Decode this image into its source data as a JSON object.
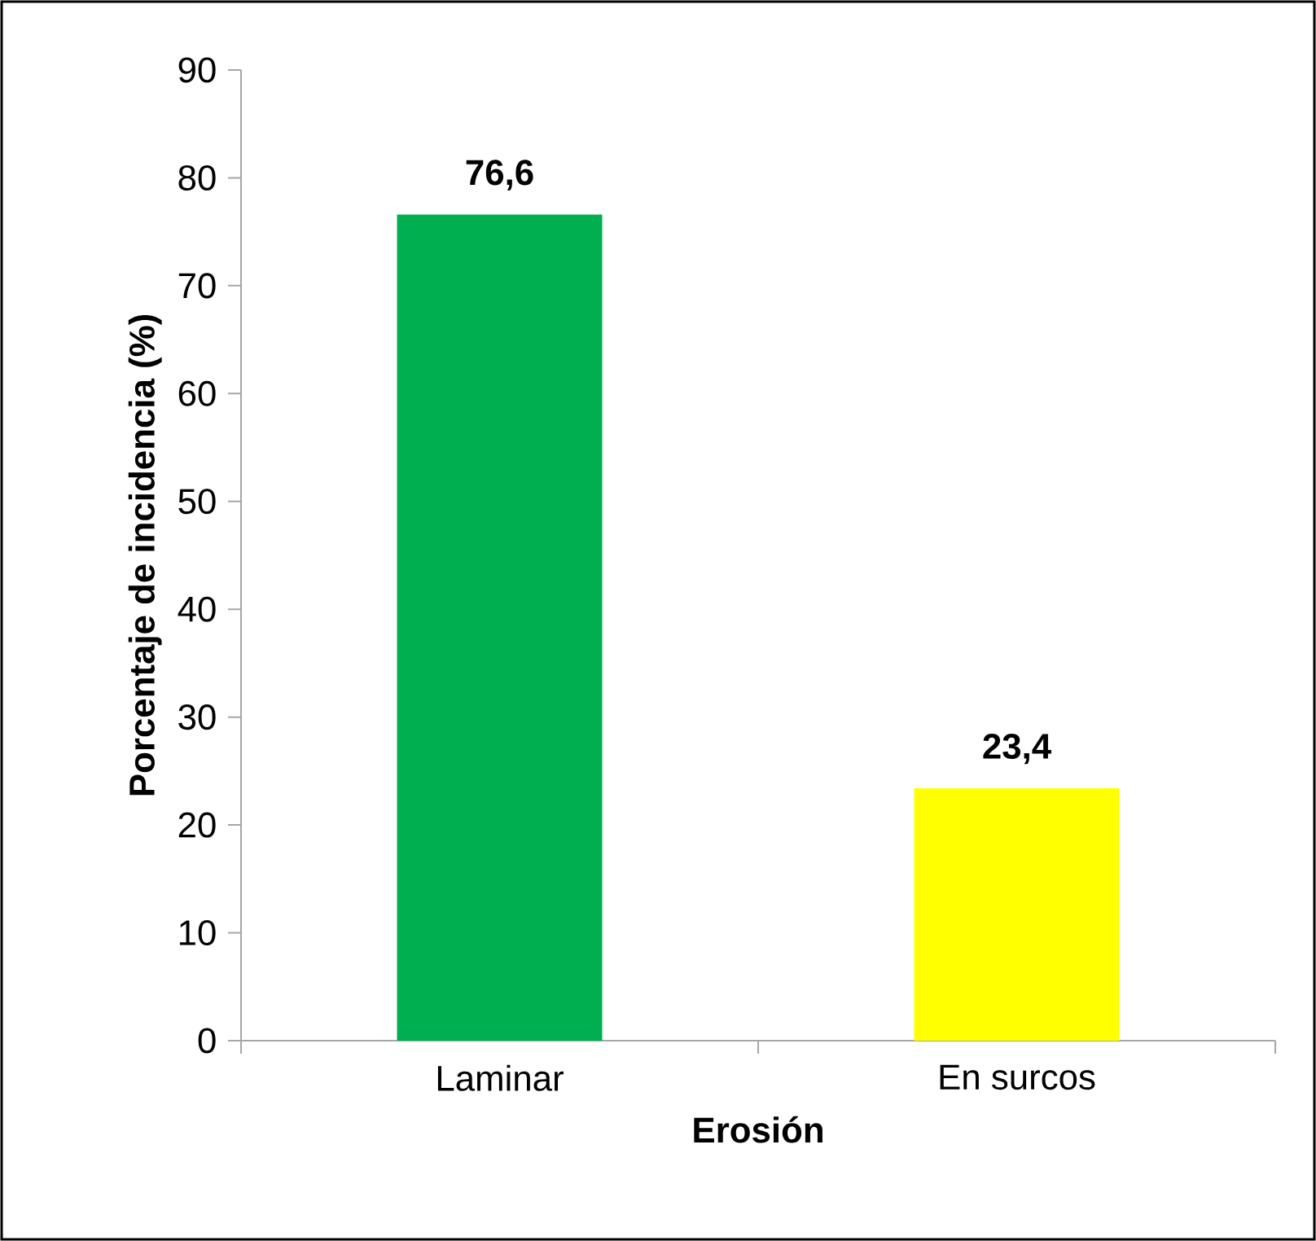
{
  "chart_data": {
    "type": "bar",
    "xlabel": "Erosión",
    "ylabel": "Porcentaje de incidencia (%)",
    "categories": [
      "Laminar",
      "En surcos"
    ],
    "values": [
      76.6,
      23.4
    ],
    "value_labels": [
      "76,6",
      "23,4"
    ],
    "colors": [
      "#00b050",
      "#ffff00"
    ],
    "ylim": [
      0,
      90
    ],
    "yticks": [
      0,
      10,
      20,
      30,
      40,
      50,
      60,
      70,
      80,
      90
    ]
  }
}
